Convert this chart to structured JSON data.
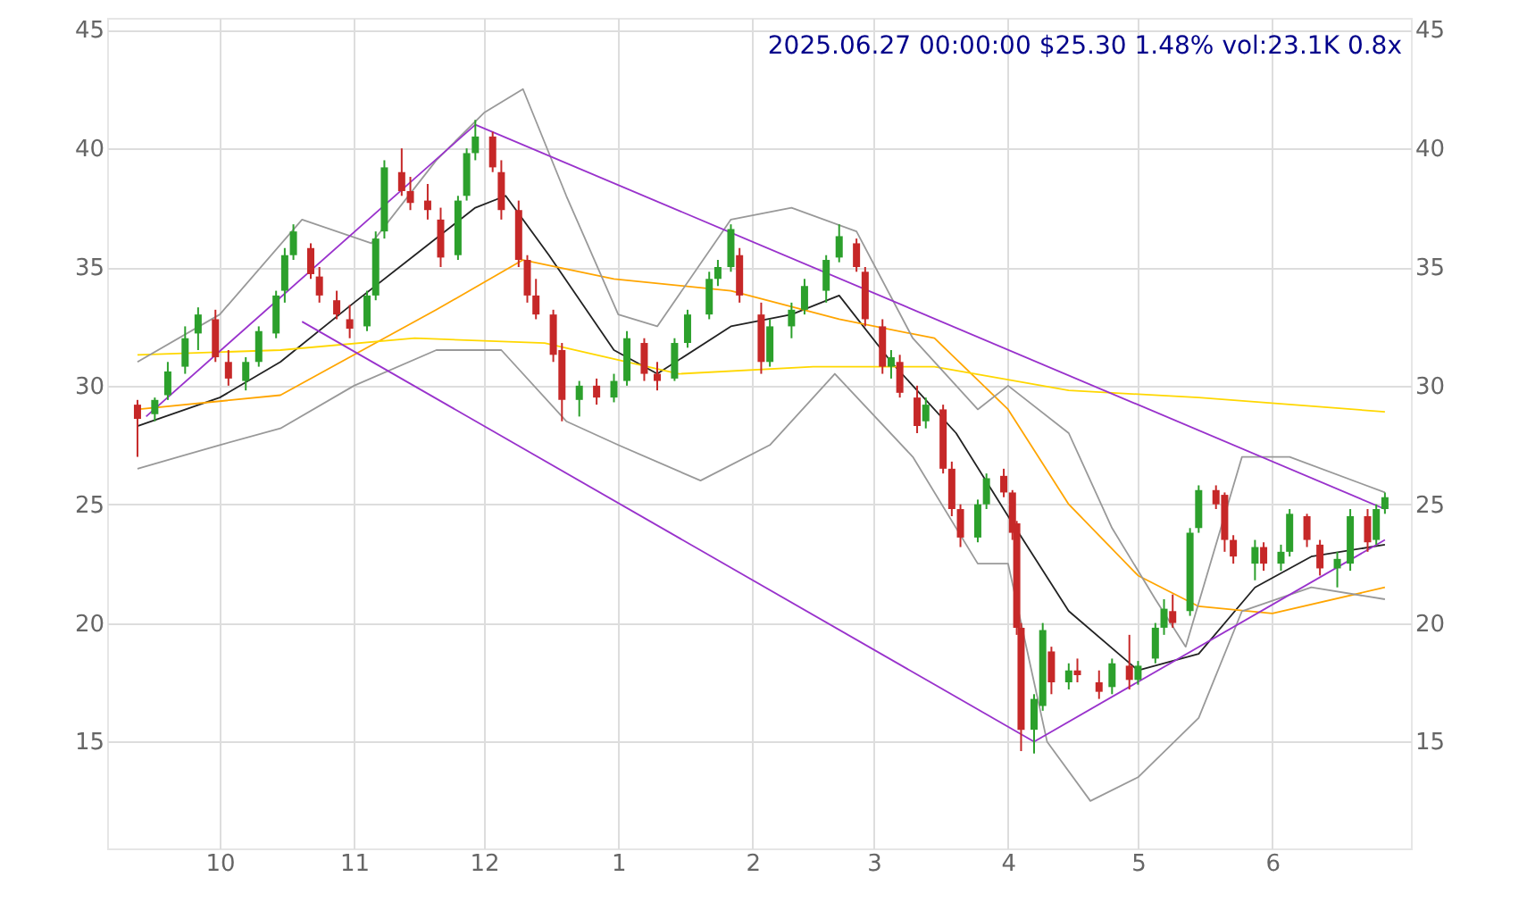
{
  "chart_data": {
    "type": "candlestick",
    "title": "2025.06.27 00:00:00 $25.30 1.48% vol:23.1K 0.8x",
    "x": [
      "2024-09-12",
      "2024-09-16",
      "2024-09-19",
      "2024-09-23",
      "2024-09-26",
      "2024-09-30",
      "2024-10-03",
      "2024-10-07",
      "2024-10-10",
      "2024-10-14",
      "2024-10-16",
      "2024-10-18",
      "2024-10-22",
      "2024-10-24",
      "2024-10-28",
      "2024-10-31",
      "2024-11-04",
      "2024-11-06",
      "2024-11-08",
      "2024-11-12",
      "2024-11-14",
      "2024-11-18",
      "2024-11-21",
      "2024-11-25",
      "2024-11-27",
      "2024-11-29",
      "2024-12-03",
      "2024-12-05",
      "2024-12-09",
      "2024-12-11",
      "2024-12-13",
      "2024-12-17",
      "2024-12-19",
      "2024-12-23",
      "2024-12-27",
      "2024-12-31",
      "2025-01-03",
      "2025-01-07",
      "2025-01-10",
      "2025-01-14",
      "2025-01-17",
      "2025-01-22",
      "2025-01-24",
      "2025-01-27",
      "2025-01-29",
      "2025-02-03",
      "2025-02-05",
      "2025-02-10",
      "2025-02-13",
      "2025-02-18",
      "2025-02-21",
      "2025-02-25",
      "2025-02-27",
      "2025-03-03",
      "2025-03-05",
      "2025-03-07",
      "2025-03-11",
      "2025-03-13",
      "2025-03-17",
      "2025-03-19",
      "2025-03-21",
      "2025-03-25",
      "2025-03-27",
      "2025-03-31",
      "2025-04-02",
      "2025-04-03",
      "2025-04-04",
      "2025-04-07",
      "2025-04-09",
      "2025-04-11",
      "2025-04-15",
      "2025-04-17",
      "2025-04-22",
      "2025-04-25",
      "2025-04-29",
      "2025-05-01",
      "2025-05-05",
      "2025-05-07",
      "2025-05-09",
      "2025-05-13",
      "2025-05-15",
      "2025-05-19",
      "2025-05-21",
      "2025-05-23",
      "2025-05-28",
      "2025-05-30",
      "2025-06-03",
      "2025-06-05",
      "2025-06-09",
      "2025-06-12",
      "2025-06-16",
      "2025-06-19",
      "2025-06-23",
      "2025-06-25",
      "2025-06-27"
    ],
    "ohlc": [
      [
        29.2,
        29.4,
        27,
        28.6
      ],
      [
        28.8,
        29.5,
        28.5,
        29.4
      ],
      [
        29.6,
        31,
        29.4,
        30.6
      ],
      [
        30.8,
        32.5,
        30.5,
        32
      ],
      [
        32.2,
        33.3,
        31.5,
        33
      ],
      [
        32.8,
        33.2,
        31,
        31.2
      ],
      [
        31,
        31.5,
        30,
        30.3
      ],
      [
        30.2,
        31.2,
        29.8,
        31
      ],
      [
        31,
        32.5,
        30.8,
        32.3
      ],
      [
        32.2,
        34,
        32,
        33.8
      ],
      [
        34,
        35.8,
        33.5,
        35.5
      ],
      [
        35.5,
        36.8,
        35.3,
        36.5
      ],
      [
        35.8,
        36,
        34.5,
        34.7
      ],
      [
        34.6,
        35,
        33.5,
        33.8
      ],
      [
        33.6,
        34,
        32.8,
        33
      ],
      [
        32.8,
        33.4,
        32,
        32.4
      ],
      [
        32.5,
        34,
        32.3,
        33.8
      ],
      [
        33.8,
        36.5,
        33.6,
        36.2
      ],
      [
        36.5,
        39.5,
        36.2,
        39.2
      ],
      [
        39,
        40,
        38,
        38.2
      ],
      [
        38.2,
        38.8,
        37.4,
        37.7
      ],
      [
        37.8,
        38.5,
        37,
        37.4
      ],
      [
        37,
        37.5,
        35,
        35.4
      ],
      [
        35.5,
        38,
        35.3,
        37.8
      ],
      [
        38,
        40,
        37.8,
        39.8
      ],
      [
        39.8,
        41.2,
        39.5,
        40.5
      ],
      [
        40.5,
        40.7,
        39,
        39.2
      ],
      [
        39,
        39.5,
        37,
        37.4
      ],
      [
        37.4,
        37.8,
        35,
        35.3
      ],
      [
        35.3,
        35.5,
        33.5,
        33.8
      ],
      [
        33.8,
        34.5,
        32.8,
        33
      ],
      [
        33,
        33.2,
        31,
        31.3
      ],
      [
        31.5,
        31.8,
        28.5,
        29.4
      ],
      [
        29.4,
        30.2,
        28.7,
        30
      ],
      [
        30,
        30.3,
        29.2,
        29.5
      ],
      [
        29.5,
        30.5,
        29.3,
        30.2
      ],
      [
        30.2,
        32.3,
        30,
        32
      ],
      [
        31.8,
        32,
        30.2,
        30.5
      ],
      [
        30.5,
        31,
        29.8,
        30.2
      ],
      [
        30.3,
        32,
        30.2,
        31.8
      ],
      [
        31.8,
        33.2,
        31.6,
        33
      ],
      [
        33,
        34.8,
        32.8,
        34.5
      ],
      [
        34.5,
        35.3,
        34.2,
        35
      ],
      [
        35,
        36.8,
        34.8,
        36.6
      ],
      [
        35.5,
        35.8,
        33.5,
        33.8
      ],
      [
        33,
        33.5,
        30.5,
        31
      ],
      [
        31,
        32.8,
        30.8,
        32.5
      ],
      [
        32.5,
        33.5,
        32,
        33.2
      ],
      [
        33.2,
        34.5,
        33,
        34.2
      ],
      [
        34,
        35.5,
        33.5,
        35.3
      ],
      [
        35.4,
        36.8,
        35.2,
        36.3
      ],
      [
        36,
        36.2,
        34.8,
        35
      ],
      [
        34.8,
        35,
        32.5,
        32.8
      ],
      [
        32.5,
        32.8,
        30.5,
        30.8
      ],
      [
        30.8,
        31.5,
        30.3,
        31.2
      ],
      [
        31,
        31.3,
        29.5,
        29.7
      ],
      [
        29.5,
        30,
        28,
        28.3
      ],
      [
        28.5,
        29.5,
        28.2,
        29.2
      ],
      [
        29,
        29.2,
        26.3,
        26.5
      ],
      [
        26.5,
        26.8,
        24.5,
        24.8
      ],
      [
        24.8,
        25,
        23.2,
        23.6
      ],
      [
        23.6,
        25.2,
        23.4,
        25
      ],
      [
        25,
        26.3,
        24.8,
        26.1
      ],
      [
        26.2,
        26.5,
        25.3,
        25.5
      ],
      [
        25.5,
        25.6,
        23.5,
        23.8
      ],
      [
        24.2,
        24.3,
        19.5,
        19.8
      ],
      [
        19.8,
        20,
        14.6,
        15.5
      ],
      [
        15.5,
        17,
        14.5,
        16.8
      ],
      [
        16.5,
        20,
        16.3,
        19.7
      ],
      [
        18.8,
        19,
        17,
        17.5
      ],
      [
        17.5,
        18.3,
        17.2,
        18
      ],
      [
        18,
        18.5,
        17.5,
        17.8
      ],
      [
        17.5,
        18,
        16.8,
        17.1
      ],
      [
        17.3,
        18.5,
        17,
        18.3
      ],
      [
        18.2,
        19.5,
        17.2,
        17.6
      ],
      [
        17.6,
        18.4,
        17.4,
        18.2
      ],
      [
        18.5,
        20,
        18.3,
        19.8
      ],
      [
        19.8,
        21,
        19.5,
        20.6
      ],
      [
        20.5,
        21.2,
        19.8,
        20
      ],
      [
        20.5,
        24,
        20.3,
        23.8
      ],
      [
        24,
        25.8,
        23.8,
        25.6
      ],
      [
        25.6,
        25.8,
        24.8,
        25
      ],
      [
        25.4,
        25.5,
        23,
        23.5
      ],
      [
        23.5,
        23.7,
        22.5,
        22.8
      ],
      [
        22.5,
        23.5,
        21.8,
        23.2
      ],
      [
        23.2,
        23.4,
        22.2,
        22.5
      ],
      [
        22.5,
        23.3,
        22.2,
        23
      ],
      [
        23,
        24.8,
        22.8,
        24.6
      ],
      [
        24.5,
        24.6,
        23.2,
        23.5
      ],
      [
        23.3,
        23.5,
        22,
        22.3
      ],
      [
        22.3,
        23,
        21.5,
        22.7
      ],
      [
        22.5,
        24.8,
        22.2,
        24.5
      ],
      [
        24.5,
        24.8,
        23,
        23.4
      ],
      [
        23.5,
        25,
        23.3,
        24.8
      ],
      [
        24.8,
        25.5,
        24.6,
        25.3
      ]
    ],
    "colors": [
      "#c62828",
      "#2ca02c",
      "#2ca02c",
      "#2ca02c",
      "#2ca02c",
      "#c62828",
      "#c62828",
      "#2ca02c",
      "#2ca02c",
      "#2ca02c",
      "#2ca02c",
      "#2ca02c",
      "#c62828",
      "#c62828",
      "#c62828",
      "#c62828",
      "#2ca02c",
      "#2ca02c",
      "#2ca02c",
      "#c62828",
      "#c62828",
      "#c62828",
      "#c62828",
      "#2ca02c",
      "#2ca02c",
      "#2ca02c",
      "#c62828",
      "#c62828",
      "#c62828",
      "#c62828",
      "#c62828",
      "#c62828",
      "#c62828",
      "#2ca02c",
      "#c62828",
      "#2ca02c",
      "#2ca02c",
      "#c62828",
      "#c62828",
      "#2ca02c",
      "#2ca02c",
      "#2ca02c",
      "#2ca02c",
      "#2ca02c",
      "#c62828",
      "#c62828",
      "#2ca02c",
      "#2ca02c",
      "#2ca02c",
      "#2ca02c",
      "#2ca02c",
      "#c62828",
      "#c62828",
      "#c62828",
      "#2ca02c",
      "#c62828",
      "#c62828",
      "#2ca02c",
      "#c62828",
      "#c62828",
      "#c62828",
      "#2ca02c",
      "#2ca02c",
      "#c62828",
      "#c62828",
      "#c62828",
      "#c62828",
      "#2ca02c",
      "#2ca02c",
      "#c62828",
      "#2ca02c",
      "#c62828",
      "#c62828",
      "#2ca02c",
      "#c62828",
      "#2ca02c",
      "#2ca02c",
      "#2ca02c",
      "#c62828",
      "#2ca02c",
      "#2ca02c",
      "#c62828",
      "#c62828",
      "#c62828",
      "#2ca02c",
      "#c62828",
      "#2ca02c",
      "#2ca02c",
      "#c62828",
      "#c62828",
      "#2ca02c",
      "#2ca02c",
      "#c62828",
      "#2ca02c",
      "#2ca02c"
    ],
    "series": [
      {
        "type": "line",
        "color": "#222222",
        "x": [
          "2024-09-12",
          "2024-10-01",
          "2024-10-15",
          "2024-11-01",
          "2024-11-15",
          "2024-11-29",
          "2024-12-06",
          "2024-12-16",
          "2024-12-31",
          "2025-01-10",
          "2025-01-27",
          "2025-02-10",
          "2025-02-21",
          "2025-03-05",
          "2025-03-20",
          "2025-04-01",
          "2025-04-15",
          "2025-05-01",
          "2025-05-15",
          "2025-05-28",
          "2025-06-10",
          "2025-06-27"
        ],
        "values": [
          28.3,
          29.5,
          31,
          33.5,
          35.5,
          37.5,
          38,
          35.5,
          31.5,
          30.5,
          32.5,
          33,
          33.8,
          31,
          28,
          24.5,
          20.5,
          18,
          18.7,
          21.5,
          22.8,
          23.3
        ]
      },
      {
        "type": "line",
        "color": "#ffa500",
        "x": [
          "2024-09-12",
          "2024-10-15",
          "2024-11-01",
          "2024-11-20",
          "2024-12-10",
          "2024-12-31",
          "2025-01-27",
          "2025-02-21",
          "2025-03-15",
          "2025-04-01",
          "2025-04-15",
          "2025-05-01",
          "2025-05-15",
          "2025-06-01",
          "2025-06-27"
        ],
        "values": [
          29,
          29.6,
          31.3,
          33.2,
          35.3,
          34.5,
          34,
          32.8,
          32,
          29,
          25,
          22,
          20.7,
          20.4,
          21.5
        ]
      },
      {
        "type": "line",
        "color": "#ffd700",
        "x": [
          "2024-09-12",
          "2024-10-15",
          "2024-11-15",
          "2024-12-15",
          "2025-01-15",
          "2025-02-15",
          "2025-03-15",
          "2025-04-15",
          "2025-05-15",
          "2025-06-27"
        ],
        "values": [
          31.3,
          31.5,
          32,
          31.8,
          30.5,
          30.8,
          30.8,
          29.8,
          29.5,
          28.9
        ]
      },
      {
        "type": "line",
        "color": "#999999",
        "x": [
          "2024-09-12",
          "2024-10-01",
          "2024-10-20",
          "2024-11-05",
          "2024-11-20",
          "2024-12-01",
          "2024-12-10",
          "2024-12-20",
          "2025-01-01",
          "2025-01-10",
          "2025-01-27",
          "2025-02-10",
          "2025-02-25",
          "2025-03-10",
          "2025-03-25",
          "2025-04-01",
          "2025-04-15",
          "2025-04-25",
          "2025-05-05",
          "2025-05-12",
          "2025-05-25",
          "2025-06-05",
          "2025-06-27"
        ],
        "values": [
          31,
          33,
          37,
          36,
          39.5,
          41.5,
          42.5,
          38,
          33,
          32.5,
          37,
          37.5,
          36.5,
          32,
          29,
          30,
          28,
          24,
          21,
          19,
          27,
          27,
          25.5
        ]
      },
      {
        "type": "line",
        "color": "#999999",
        "x": [
          "2024-09-12",
          "2024-10-01",
          "2024-10-15",
          "2024-11-01",
          "2024-11-20",
          "2024-12-05",
          "2024-12-20",
          "2025-01-01",
          "2025-01-20",
          "2025-02-05",
          "2025-02-20",
          "2025-03-10",
          "2025-03-25",
          "2025-04-01",
          "2025-04-10",
          "2025-04-20",
          "2025-05-01",
          "2025-05-15",
          "2025-05-25",
          "2025-06-10",
          "2025-06-27"
        ],
        "values": [
          26.5,
          27.5,
          28.2,
          30,
          31.5,
          31.5,
          28.5,
          27.5,
          26,
          27.5,
          30.5,
          27,
          22.5,
          22.5,
          15,
          12.5,
          13.5,
          16,
          20.5,
          21.5,
          21
        ]
      },
      {
        "type": "line",
        "color": "#9932cc",
        "x": [
          "2024-09-14",
          "2024-11-29"
        ],
        "values": [
          28.7,
          41
        ]
      },
      {
        "type": "line",
        "color": "#9932cc",
        "x": [
          "2024-11-29",
          "2025-06-27"
        ],
        "values": [
          41,
          24.8
        ]
      },
      {
        "type": "line",
        "color": "#9932cc",
        "x": [
          "2024-10-20",
          "2025-04-07"
        ],
        "values": [
          32.7,
          15
        ]
      },
      {
        "type": "line",
        "color": "#9932cc",
        "x": [
          "2025-04-07",
          "2025-06-27"
        ],
        "values": [
          15,
          23.5
        ]
      }
    ],
    "xticks": [
      {
        "value": "2024-10-01",
        "label": "10"
      },
      {
        "value": "2024-11-01",
        "label": "11"
      },
      {
        "value": "2024-12-01",
        "label": "12"
      },
      {
        "value": "2025-01-01",
        "label": "1"
      },
      {
        "value": "2025-02-01",
        "label": "2"
      },
      {
        "value": "2025-03-01",
        "label": "3"
      },
      {
        "value": "2025-04-01",
        "label": "4"
      },
      {
        "value": "2025-05-01",
        "label": "5"
      },
      {
        "value": "2025-06-01",
        "label": "6"
      }
    ],
    "xlim": [
      "2024-09-05",
      "2025-07-03"
    ],
    "ylim": [
      10.5,
      45.5
    ],
    "yticks": [
      15,
      20,
      25,
      30,
      35,
      40,
      45
    ],
    "y2lim": [
      10.5,
      45.5
    ],
    "y2ticks": [
      15,
      20,
      25,
      30,
      35,
      40,
      45
    ],
    "grid": true
  }
}
